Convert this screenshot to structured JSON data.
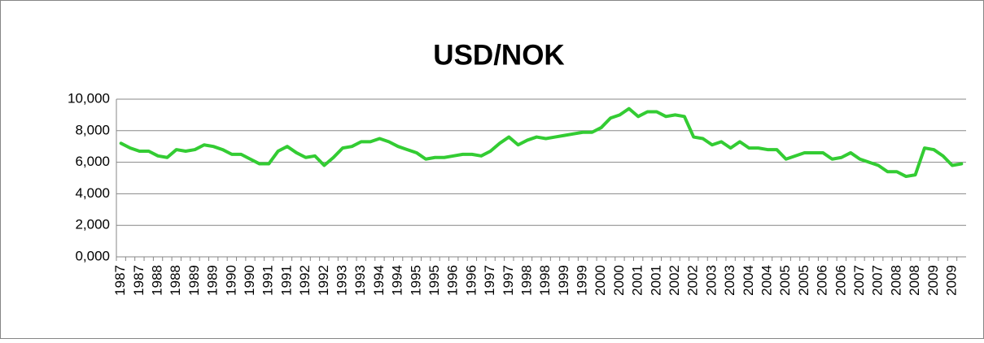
{
  "chart_data": {
    "type": "line",
    "title": "USD/NOK",
    "categories": [
      "1987",
      null,
      "1987",
      null,
      "1988",
      null,
      "1988",
      null,
      "1989",
      null,
      "1989",
      null,
      "1990",
      null,
      "1990",
      null,
      "1991",
      null,
      "1991",
      null,
      "1992",
      null,
      "1992",
      null,
      "1993",
      null,
      "1993",
      null,
      "1994",
      null,
      "1994",
      null,
      "1995",
      null,
      "1995",
      null,
      "1996",
      null,
      "1996",
      null,
      "1997",
      null,
      "1997",
      null,
      "1998",
      null,
      "1998",
      null,
      "1999",
      null,
      "1999",
      null,
      "2000",
      null,
      "2000",
      null,
      "2001",
      null,
      "2001",
      null,
      "2002",
      null,
      "2002",
      null,
      "2003",
      null,
      "2003",
      null,
      "2004",
      null,
      "2004",
      null,
      "2005",
      null,
      "2005",
      null,
      "2006",
      null,
      "2006",
      null,
      "2007",
      null,
      "2007",
      null,
      "2008",
      null,
      "2008",
      null,
      "2009",
      null,
      "2009",
      null
    ],
    "values": [
      7.2,
      6.9,
      6.7,
      6.7,
      6.4,
      6.3,
      6.8,
      6.7,
      6.8,
      7.1,
      7.0,
      6.8,
      6.5,
      6.5,
      6.2,
      5.9,
      5.9,
      6.7,
      7.0,
      6.6,
      6.3,
      6.4,
      5.8,
      6.3,
      6.9,
      7.0,
      7.3,
      7.3,
      7.5,
      7.3,
      7.0,
      6.8,
      6.6,
      6.2,
      6.3,
      6.3,
      6.4,
      6.5,
      6.5,
      6.4,
      6.7,
      7.2,
      7.6,
      7.1,
      7.4,
      7.6,
      7.5,
      7.6,
      7.7,
      7.8,
      7.9,
      7.9,
      8.2,
      8.8,
      9.0,
      9.4,
      8.9,
      9.2,
      9.2,
      8.9,
      9.0,
      8.9,
      7.6,
      7.5,
      7.1,
      7.3,
      6.9,
      7.3,
      6.9,
      6.9,
      6.8,
      6.8,
      6.2,
      6.4,
      6.6,
      6.6,
      6.6,
      6.2,
      6.3,
      6.6,
      6.2,
      6.0,
      5.8,
      5.4,
      5.4,
      5.1,
      5.2,
      6.9,
      6.8,
      6.4,
      5.8,
      5.9
    ],
    "color": "#33cc33",
    "ylim": [
      0,
      10
    ],
    "yticks": [
      {
        "value": 0,
        "label": "0,000"
      },
      {
        "value": 2,
        "label": "2,000"
      },
      {
        "value": 4,
        "label": "4,000"
      },
      {
        "value": 6,
        "label": "6,000"
      },
      {
        "value": 8,
        "label": "8,000"
      },
      {
        "value": 10,
        "label": "10,000"
      }
    ],
    "grid": true
  }
}
